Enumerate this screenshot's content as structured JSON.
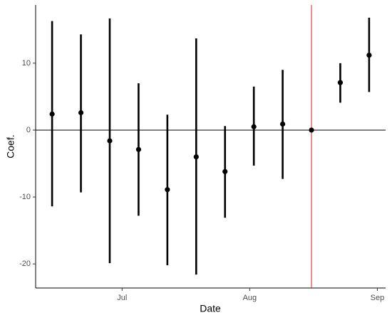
{
  "chart_data": {
    "type": "pointrange",
    "x_label": "Date",
    "y_label": "Coef.",
    "x": [
      -17,
      -10,
      -3,
      4,
      11,
      18,
      25,
      32,
      39,
      46,
      53,
      60
    ],
    "values": [
      2.4,
      2.6,
      -1.6,
      -2.9,
      -8.9,
      -4.0,
      -6.2,
      0.5,
      0.9,
      0,
      7.1,
      11.2
    ],
    "lower": [
      -11.4,
      -9.3,
      -19.9,
      -12.8,
      -20.2,
      -21.6,
      -13.1,
      -5.3,
      -7.3,
      null,
      4.1,
      5.7
    ],
    "upper": [
      16.3,
      14.3,
      16.7,
      7.0,
      2.3,
      13.7,
      0.6,
      6.5,
      9.0,
      null,
      10.0,
      16.8
    ],
    "color": "#000000",
    "xlim": [
      -21,
      64
    ],
    "xticks": [
      {
        "value": 0,
        "label": "Jul"
      },
      {
        "value": 31,
        "label": "Aug"
      },
      {
        "value": 62,
        "label": "Sep"
      }
    ],
    "ylim": [
      -23.6,
      18.7
    ],
    "yticks": [
      -20,
      -10,
      0,
      10
    ],
    "hline": 0,
    "vline": {
      "x": 46,
      "color": "#e41a1c"
    },
    "grid": false
  }
}
